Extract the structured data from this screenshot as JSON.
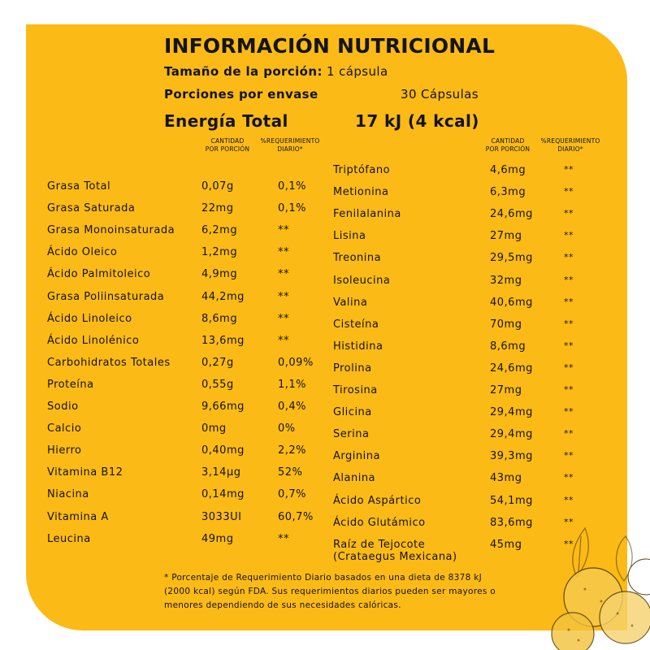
{
  "title": "INFORMACIÓN NUTRICIONAL",
  "serving": {
    "label": "Tamaño de la porción:",
    "value": "1 cápsula"
  },
  "servings_per_container": {
    "label": "Porciones por envase",
    "value": "30 Cápsulas"
  },
  "energy": {
    "label": "Energía Total",
    "value": "17 kJ (4 kcal)"
  },
  "column_headers": {
    "amount": [
      "CANTIDAD",
      "POR PORCIÓN"
    ],
    "daily": [
      "%REQUERIMIENTO",
      "DIARIO*"
    ]
  },
  "left_rows": [
    {
      "name": "Grasa Total",
      "amount": "0,07g",
      "daily": "0,1%"
    },
    {
      "name": "Grasa Saturada",
      "amount": "22mg",
      "daily": "0,1%"
    },
    {
      "name": "Grasa Monoinsaturada",
      "amount": "6,2mg",
      "daily": "**"
    },
    {
      "name": "Ácido Oleico",
      "amount": "1,2mg",
      "daily": "**"
    },
    {
      "name": "Ácido Palmitoleico",
      "amount": "4,9mg",
      "daily": "**"
    },
    {
      "name": "Grasa Poliinsaturada",
      "amount": "44,2mg",
      "daily": "**"
    },
    {
      "name": "Ácido Linoleico",
      "amount": "8,6mg",
      "daily": "**"
    },
    {
      "name": "Ácido Linolénico",
      "amount": " 13,6mg",
      "daily": "**"
    },
    {
      "name": "Carbohidratos Totales",
      "amount": "0,27g",
      "daily": "0,09%"
    },
    {
      "name": "Proteína",
      "amount": "0,55g",
      "daily": "1,1%"
    },
    {
      "name": "Sodio",
      "amount": "9,66mg",
      "daily": "0,4%"
    },
    {
      "name": "Calcio",
      "amount": "0mg",
      "daily": "0%"
    },
    {
      "name": "Hierro",
      "amount": "0,40mg",
      "daily": "2,2%"
    },
    {
      "name": "Vitamina B12",
      "amount": "3,14µg",
      "daily": "52%"
    },
    {
      "name": "Niacina",
      "amount": "0,14mg",
      "daily": "0,7%"
    },
    {
      "name": "Vitamina A",
      "amount": "3033UI",
      "daily": "60,7%"
    },
    {
      "name": "Leucina",
      "amount": "49mg",
      "daily": "**"
    }
  ],
  "right_rows": [
    {
      "name": "Triptófano",
      "amount": "4,6mg",
      "daily": "**"
    },
    {
      "name": "Metionina",
      "amount": "6,3mg",
      "daily": "**"
    },
    {
      "name": "Fenilalanina",
      "amount": "24,6mg",
      "daily": "**"
    },
    {
      "name": "Lisina",
      "amount": "27mg",
      "daily": "**"
    },
    {
      "name": "Treonina",
      "amount": "29,5mg",
      "daily": "**"
    },
    {
      "name": "Isoleucina",
      "amount": "32mg",
      "daily": "**"
    },
    {
      "name": "Valina",
      "amount": "40,6mg",
      "daily": "**"
    },
    {
      "name": "Cisteína",
      "amount": "70mg",
      "daily": "**"
    },
    {
      "name": "Histidina",
      "amount": "8,6mg",
      "daily": "**"
    },
    {
      "name": "Prolina",
      "amount": "24,6mg",
      "daily": "**"
    },
    {
      "name": "Tirosina",
      "amount": "27mg",
      "daily": "**"
    },
    {
      "name": "Glicina",
      "amount": "29,4mg",
      "daily": "**"
    },
    {
      "name": "Serina",
      "amount": "29,4mg",
      "daily": "**"
    },
    {
      "name": "Arginina",
      "amount": "39,3mg",
      "daily": "**"
    },
    {
      "name": "Alanina",
      "amount": "43mg",
      "daily": "**"
    },
    {
      "name": "Ácido Aspártico",
      "amount": "54,1mg",
      "daily": "**"
    },
    {
      "name": "Ácido Glutámico",
      "amount": "83,6mg",
      "daily": "**"
    },
    {
      "name": "Raíz de Tejocote\n(Crataegus Mexicana)",
      "amount": "45mg",
      "daily": "**"
    }
  ],
  "footnote": "* Porcentaje de Requerimiento Diario basados en una dieta de 8378 kJ (2000 kcal) según FDA. Sus requerimientos diarios pueden ser mayores o menores dependiendo de sus necesidades calóricas.",
  "colors": {
    "panel": "#FBBA16",
    "text": "#141414",
    "background": "#FFFFFF"
  },
  "decoration": "tejocote-fruit-illustration"
}
